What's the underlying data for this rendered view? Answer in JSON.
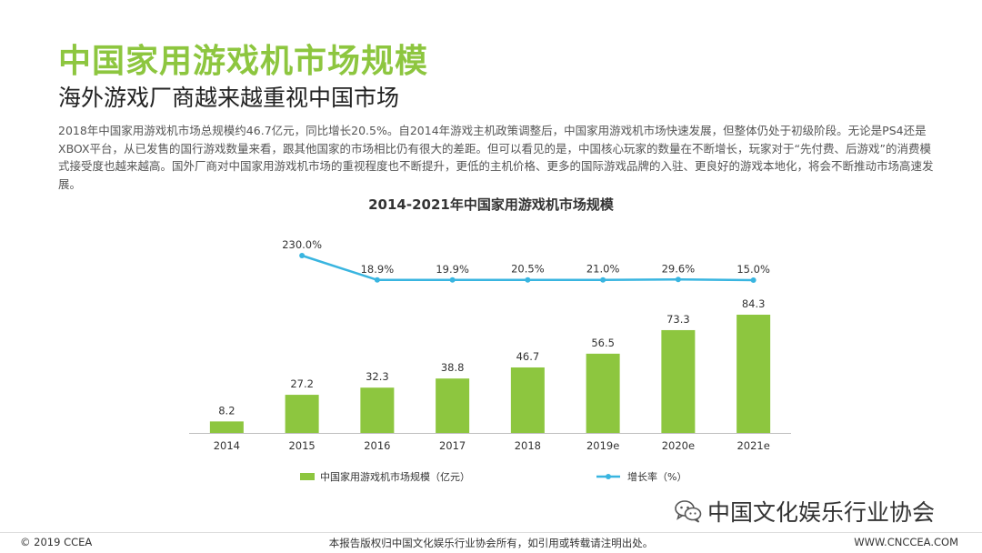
{
  "colors": {
    "accent_green": "#8DC63F",
    "bar_green": "#8DC63F",
    "line_cyan": "#39B5E0",
    "text_dark": "#333333"
  },
  "page": {
    "title": "中国家用游戏机市场规模",
    "subtitle": "海外游戏厂商越来越重视中国市场",
    "body": "2018年中国家用游戏机市场总规模约46.7亿元，同比增长20.5%。自2014年游戏主机政策调整后，中国家用游戏机市场快速发展，但整体仍处于初级阶段。无论是PS4还是XBOX平台，从已发售的国行游戏数量来看，跟其他国家的市场相比仍有很大的差距。但可以看见的是，中国核心玩家的数量在不断增长，玩家对于“先付费、后游戏”的消费模式接受度也越来越高。国外厂商对中国家用游戏机市场的重视程度也不断提升，更低的主机价格、更多的国际游戏品牌的入驻、更良好的游戏本地化，将会不断推动市场高速发展。"
  },
  "chart_data": {
    "type": "bar",
    "title": "2014-2021年中国家用游戏机市场规模",
    "categories": [
      "2014",
      "2015",
      "2016",
      "2017",
      "2018",
      "2019e",
      "2020e",
      "2021e"
    ],
    "series": [
      {
        "name": "中国家用游戏机市场规模（亿元）",
        "type": "bar",
        "values": [
          8.2,
          27.2,
          32.3,
          38.8,
          46.7,
          56.5,
          73.3,
          84.3
        ],
        "labels": [
          "8.2",
          "27.2",
          "32.3",
          "38.8",
          "46.7",
          "56.5",
          "73.3",
          "84.3"
        ]
      },
      {
        "name": "增长率（%）",
        "type": "line",
        "values": [
          null,
          230.0,
          18.9,
          19.9,
          20.5,
          21.0,
          29.6,
          15.0
        ],
        "labels": [
          "",
          "230.0%",
          "18.9%",
          "19.9%",
          "20.5%",
          "21.0%",
          "29.6%",
          "15.0%"
        ]
      }
    ],
    "grid": false,
    "legend": "bottom"
  },
  "watermark": {
    "text": "中国文化娱乐行业协会",
    "icon": "wechat-icon"
  },
  "footer": {
    "left": "© 2019 CCEA",
    "center": "本报告版权归中国文化娱乐行业协会所有，如引用或转载请注明出处。",
    "right": "WWW.CNCCEA.COM"
  }
}
